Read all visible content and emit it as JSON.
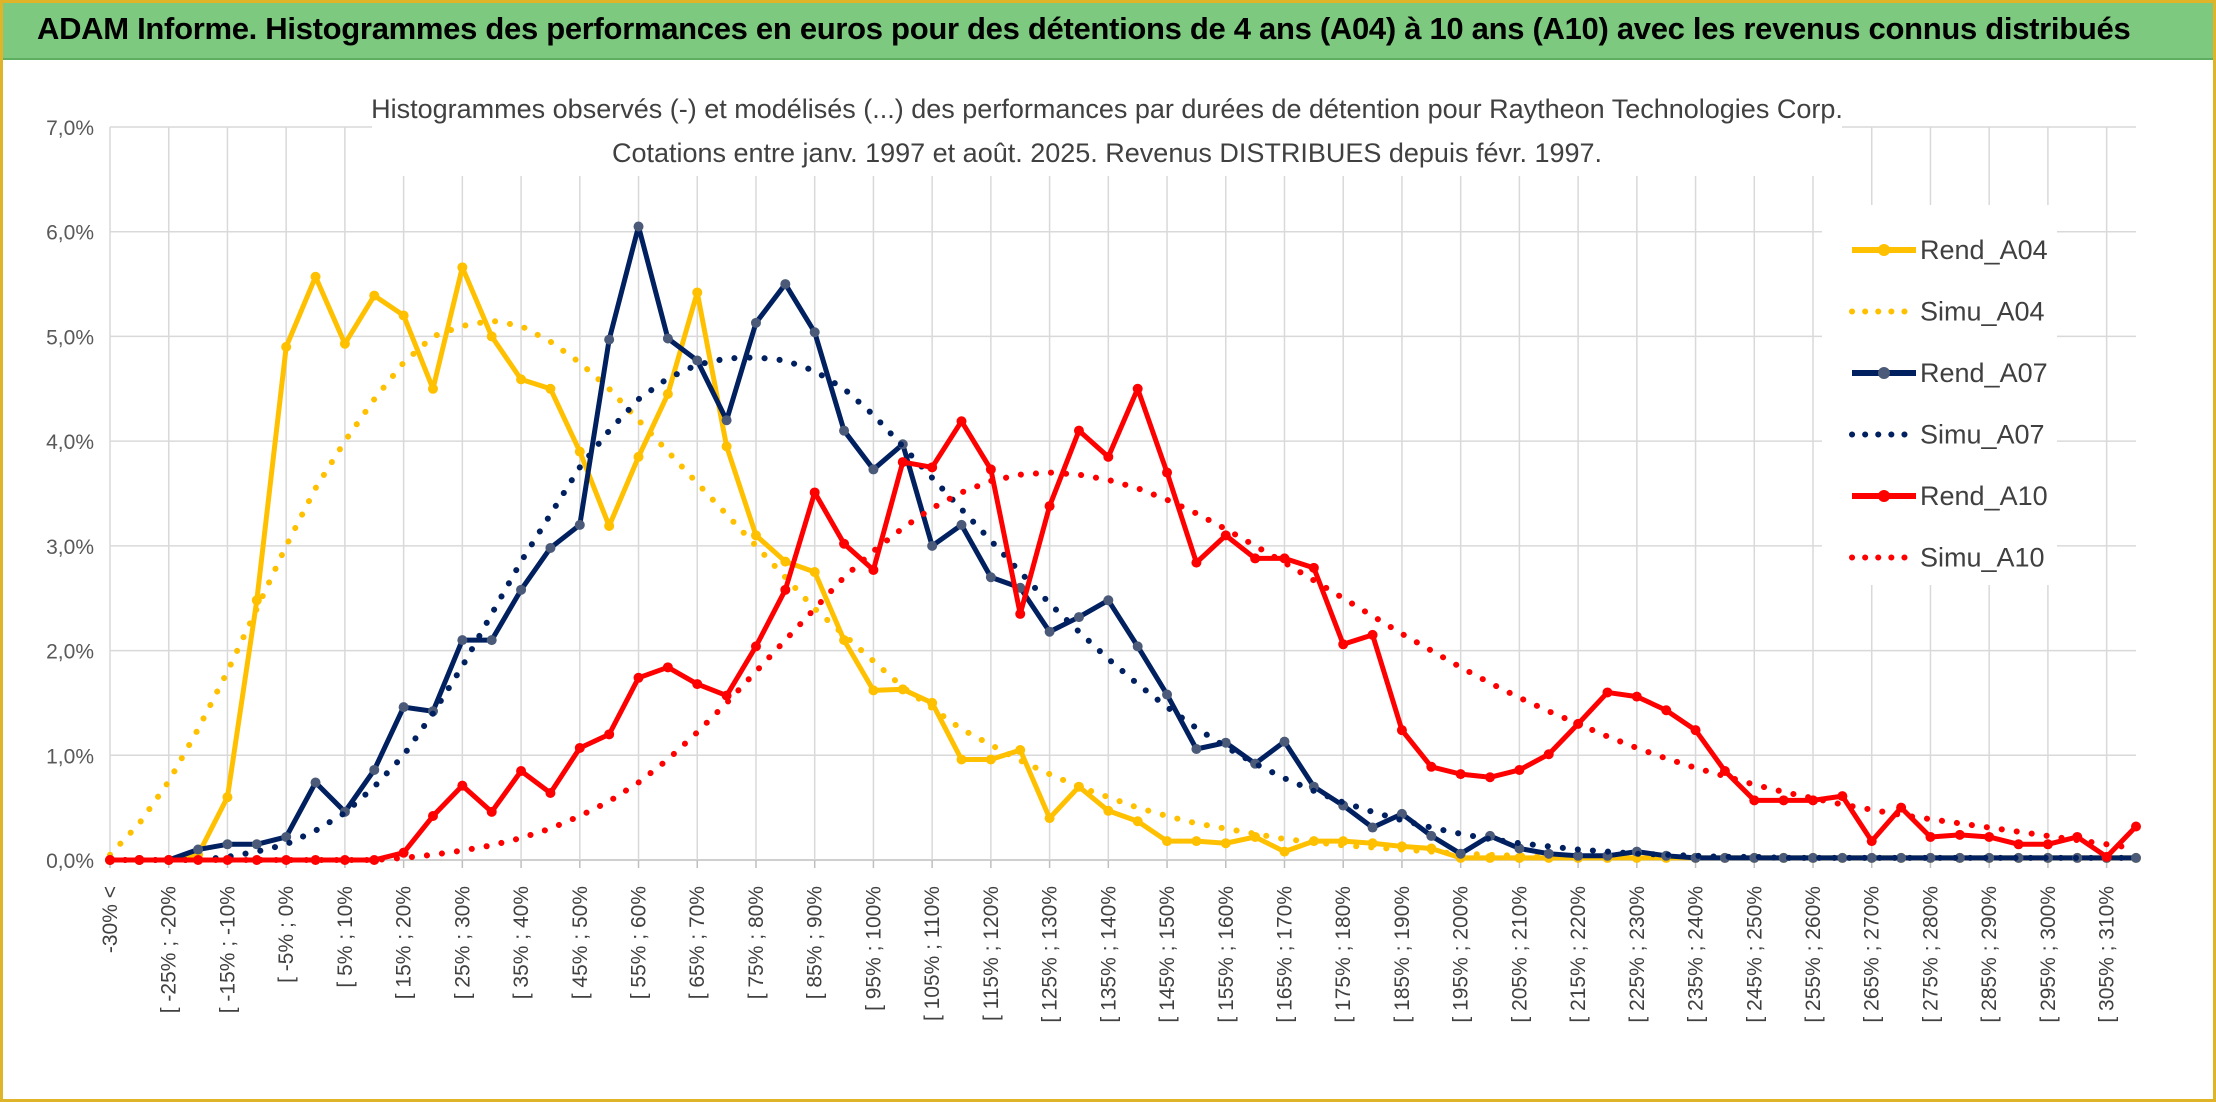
{
  "banner": {
    "title": "ADAM Informe. Histogrammes des performances en euros pour des détentions de 4 ans (A04) à 10 ans (A10) avec les revenus connus distribués"
  },
  "colors": {
    "a04": "#ffc000",
    "a07": "#002060",
    "a10": "#ff0000",
    "a07_marker": "#4a5a78",
    "banner": "#7dc97f",
    "grid": "#d9d9d9"
  },
  "chart_data": {
    "type": "line",
    "title": "Histogrammes observés (-) et modélisés (...) des performances par durées de détention pour Raytheon Technologies Corp.",
    "subtitle": "Cotations entre janv. 1997 et août. 2025. Revenus DISTRIBUES depuis févr. 1997.",
    "xlabel": "",
    "ylabel": "",
    "ylim": [
      0,
      7
    ],
    "y_ticks": [
      "0,0%",
      "1,0%",
      "2,0%",
      "3,0%",
      "4,0%",
      "5,0%",
      "6,0%",
      "7,0%"
    ],
    "grid": true,
    "legend_position": "right",
    "x_labels": [
      "-30% <",
      "[ -25% ; -20%",
      "[ -15% ; -10%",
      "[ -5% ; 0%",
      "[ 5% ; 10%",
      "[ 15% ; 20%",
      "[ 25% ; 30%",
      "[ 35% ; 40%",
      "[ 45% ; 50%",
      "[ 55% ; 60%",
      "[ 65% ; 70%",
      "[ 75% ; 80%",
      "[ 85% ; 90%",
      "[ 95% ; 100%",
      "[ 105% ; 110%",
      "[ 115% ; 120%",
      "[ 125% ; 130%",
      "[ 135% ; 140%",
      "[ 145% ; 150%",
      "[ 155% ; 160%",
      "[ 165% ; 170%",
      "[ 175% ; 180%",
      "[ 185% ; 190%",
      "[ 195% ; 200%",
      "[ 205% ; 210%",
      "[ 215% ; 220%",
      "[ 225% ; 230%",
      "[ 235% ; 240%",
      "[ 245% ; 250%",
      "[ 255% ; 260%",
      "[ 265% ; 270%",
      "[ 275% ; 280%",
      "[ 285% ; 290%",
      "[ 295% ; 300%",
      "[ 305% ; 310%"
    ],
    "series": [
      {
        "name": "Rend_A04",
        "style": "solid",
        "color": "#ffc000",
        "values": [
          0,
          0,
          0,
          0.05,
          0.6,
          2.48,
          4.9,
          5.57,
          4.93,
          5.39,
          5.2,
          4.5,
          5.66,
          5.0,
          4.59,
          4.5,
          3.9,
          3.19,
          3.85,
          4.45,
          5.42,
          3.95,
          3.1,
          2.85,
          2.75,
          2.1,
          1.62,
          1.63,
          1.5,
          0.96,
          0.96,
          1.05,
          0.4,
          0.7,
          0.47,
          0.37,
          0.18,
          0.18,
          0.16,
          0.22,
          0.08,
          0.18,
          0.18,
          0.16,
          0.13,
          0.11,
          0.02,
          0.02,
          0.02,
          0.02,
          0.02,
          0.02,
          0.02,
          0.02,
          0.02,
          0.02,
          0.02,
          0.02,
          0.02,
          0.02,
          0.02,
          0.02,
          0.02,
          0.02,
          0.02,
          0.02,
          0.02,
          0.02,
          0.02,
          0.02
        ]
      },
      {
        "name": "Simu_A04",
        "style": "dotted",
        "color": "#ffc000",
        "values": [
          0.05,
          0.35,
          0.75,
          1.25,
          1.8,
          2.4,
          3.0,
          3.55,
          4.0,
          4.4,
          4.75,
          5.0,
          5.1,
          5.15,
          5.1,
          4.95,
          4.75,
          4.5,
          4.2,
          3.9,
          3.6,
          3.3,
          3.0,
          2.7,
          2.4,
          2.15,
          1.9,
          1.65,
          1.45,
          1.25,
          1.1,
          0.95,
          0.82,
          0.7,
          0.6,
          0.5,
          0.42,
          0.35,
          0.3,
          0.25,
          0.2,
          0.17,
          0.14,
          0.12,
          0.1,
          0.08,
          0.06,
          0.05,
          0.04,
          0.03,
          0.02
        ]
      },
      {
        "name": "Rend_A07",
        "style": "solid",
        "color": "#002060",
        "values": [
          0,
          0,
          0,
          0.1,
          0.15,
          0.15,
          0.22,
          0.74,
          0.46,
          0.86,
          1.46,
          1.42,
          2.1,
          2.1,
          2.58,
          2.98,
          3.2,
          4.97,
          6.05,
          4.98,
          4.77,
          4.2,
          5.13,
          5.5,
          5.04,
          4.1,
          3.73,
          3.97,
          3.0,
          3.2,
          2.7,
          2.6,
          2.18,
          2.32,
          2.48,
          2.04,
          1.58,
          1.06,
          1.12,
          0.92,
          1.13,
          0.7,
          0.52,
          0.31,
          0.44,
          0.23,
          0.06,
          0.23,
          0.11,
          0.06,
          0.04,
          0.04,
          0.08,
          0.04,
          0.02,
          0.02,
          0.02,
          0.02,
          0.02,
          0.02,
          0.02,
          0.02,
          0.02,
          0.02,
          0.02,
          0.02,
          0.02,
          0.02,
          0.02,
          0.02
        ]
      },
      {
        "name": "Simu_A07",
        "style": "dotted",
        "color": "#002060",
        "values": [
          0,
          0,
          0,
          0,
          0.03,
          0.08,
          0.15,
          0.28,
          0.45,
          0.7,
          1.0,
          1.4,
          1.85,
          2.35,
          2.85,
          3.3,
          3.75,
          4.1,
          4.4,
          4.6,
          4.73,
          4.79,
          4.8,
          4.77,
          4.67,
          4.5,
          4.25,
          3.95,
          3.65,
          3.35,
          3.05,
          2.75,
          2.45,
          2.18,
          1.92,
          1.68,
          1.46,
          1.26,
          1.08,
          0.92,
          0.78,
          0.66,
          0.55,
          0.46,
          0.38,
          0.31,
          0.25,
          0.2,
          0.16,
          0.13,
          0.1,
          0.08,
          0.06,
          0.05,
          0.04,
          0.03,
          0.03,
          0.02,
          0.02,
          0.02,
          0.02,
          0.02,
          0.02,
          0.02,
          0.02,
          0.02,
          0.02,
          0.02,
          0.02,
          0.02
        ]
      },
      {
        "name": "Rend_A10",
        "style": "solid",
        "color": "#ff0000",
        "values": [
          0,
          0,
          0,
          0,
          0,
          0,
          0,
          0,
          0,
          0,
          0.07,
          0.42,
          0.71,
          0.46,
          0.85,
          0.64,
          1.07,
          1.2,
          1.74,
          1.84,
          1.68,
          1.57,
          2.04,
          2.58,
          3.51,
          3.02,
          2.77,
          3.8,
          3.75,
          4.19,
          3.73,
          2.35,
          3.38,
          4.1,
          3.85,
          4.5,
          3.7,
          2.84,
          3.1,
          2.88,
          2.88,
          2.79,
          2.06,
          2.15,
          1.24,
          0.89,
          0.82,
          0.79,
          0.86,
          1.01,
          1.3,
          1.6,
          1.56,
          1.43,
          1.24,
          0.85,
          0.57,
          0.57,
          0.57,
          0.61,
          0.18,
          0.5,
          0.22,
          0.24,
          0.22,
          0.15,
          0.15,
          0.22,
          0.03,
          0.32
        ]
      },
      {
        "name": "Simu_A10",
        "style": "dotted",
        "color": "#ff0000",
        "values": [
          0,
          0,
          0,
          0,
          0,
          0,
          0,
          0,
          0,
          0,
          0.02,
          0.05,
          0.09,
          0.14,
          0.21,
          0.3,
          0.42,
          0.56,
          0.74,
          0.96,
          1.22,
          1.5,
          1.8,
          2.1,
          2.4,
          2.7,
          2.95,
          3.17,
          3.36,
          3.51,
          3.62,
          3.68,
          3.7,
          3.68,
          3.63,
          3.55,
          3.44,
          3.31,
          3.16,
          3.0,
          2.84,
          2.67,
          2.5,
          2.33,
          2.16,
          2.0,
          1.84,
          1.69,
          1.55,
          1.42,
          1.3,
          1.18,
          1.07,
          0.97,
          0.88,
          0.8,
          0.72,
          0.65,
          0.59,
          0.53,
          0.48,
          0.43,
          0.39,
          0.35,
          0.31,
          0.27,
          0.23,
          0.19,
          0.15,
          0.11
        ]
      }
    ]
  }
}
